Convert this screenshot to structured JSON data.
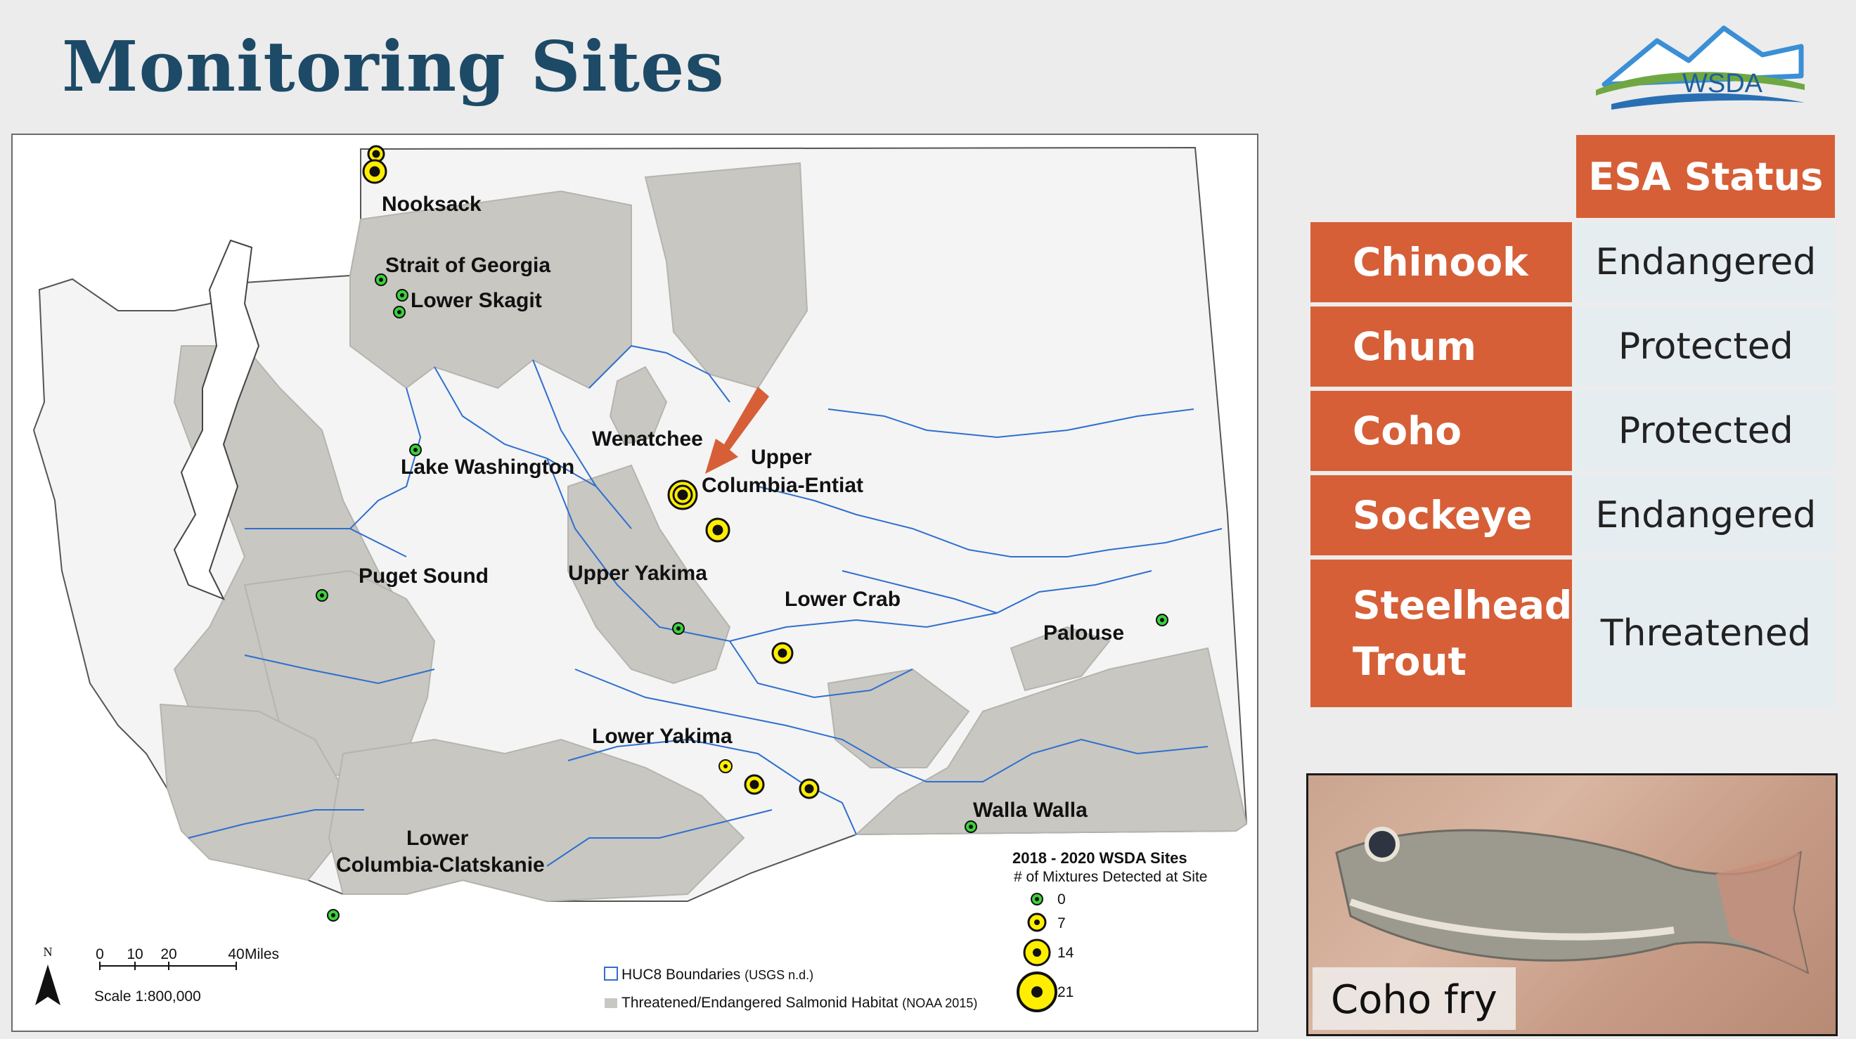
{
  "slide": {
    "title": "Monitoring Sites"
  },
  "logo": {
    "text": "WSDA",
    "colors": {
      "green": "#6fa842",
      "blue": "#2a6fb3",
      "mountain": "#3a8fd6"
    }
  },
  "map": {
    "labels": [
      "Nooksack",
      "Strait of Georgia",
      "Lower Skagit",
      "Lake Washington",
      "Puget Sound",
      "Wenatchee",
      "Upper",
      "Columbia-Entiat",
      "Upper Yakima",
      "Lower Crab",
      "Palouse",
      "Lower Yakima",
      "Walla Walla",
      "Lower",
      "Columbia-Clatskanie"
    ],
    "sites_mixtures": [
      {
        "basin": "Nooksack",
        "count": 7
      },
      {
        "basin": "Nooksack",
        "count": 14
      },
      {
        "basin": "Strait of Georgia",
        "count": 0
      },
      {
        "basin": "Lower Skagit",
        "count": 0
      },
      {
        "basin": "Lower Skagit",
        "count": 0
      },
      {
        "basin": "Lake Washington",
        "count": 0
      },
      {
        "basin": "Puget Sound",
        "count": 0
      },
      {
        "basin": "Upper Columbia-Entiat",
        "count": 21
      },
      {
        "basin": "Upper Columbia-Entiat",
        "count": 14
      },
      {
        "basin": "Upper Yakima",
        "count": 0
      },
      {
        "basin": "Lower Crab",
        "count": 14
      },
      {
        "basin": "Palouse",
        "count": 0
      },
      {
        "basin": "Lower Yakima",
        "count": 7
      },
      {
        "basin": "Lower Yakima",
        "count": 14
      },
      {
        "basin": "Lower Yakima",
        "count": 14
      },
      {
        "basin": "Walla Walla",
        "count": 0
      },
      {
        "basin": "Lower Columbia-Clatskanie",
        "count": 0
      }
    ],
    "legend": {
      "title": "2018 - 2020 WSDA Sites",
      "subtitle": "# of Mixtures Detected at Site",
      "sizes": [
        "0",
        "7",
        "14",
        "21"
      ],
      "huc8": "HUC8 Boundaries",
      "huc8_src": "(USGS n.d.)",
      "habitat": "Threatened/Endangered Salmonid Habitat",
      "habitat_src": "(NOAA 2015)"
    },
    "north": "N",
    "scalebar": {
      "ticks": [
        "0",
        "10",
        "20",
        "40"
      ],
      "unit": "Miles",
      "scale": "Scale 1:800,000"
    },
    "colors": {
      "habitat": "#c8c7c1",
      "land": "#f4f4f4",
      "huc": "#2f6fcf",
      "arrow": "#d65f37",
      "site0": "#3cd13c",
      "site": "#ffee00"
    }
  },
  "esa_table": {
    "header": "ESA Status",
    "rows": [
      {
        "species": "Chinook",
        "status": "Endangered"
      },
      {
        "species": "Chum",
        "status": "Protected"
      },
      {
        "species": "Coho",
        "status": "Protected"
      },
      {
        "species": "Sockeye",
        "status": "Endangered"
      },
      {
        "species": "Steelhead",
        "species2": "Trout",
        "status": "Threatened"
      }
    ],
    "colors": {
      "species_bg": "#d65f37",
      "status_bg": "#e6edf1"
    }
  },
  "photo": {
    "caption": "Coho fry"
  }
}
